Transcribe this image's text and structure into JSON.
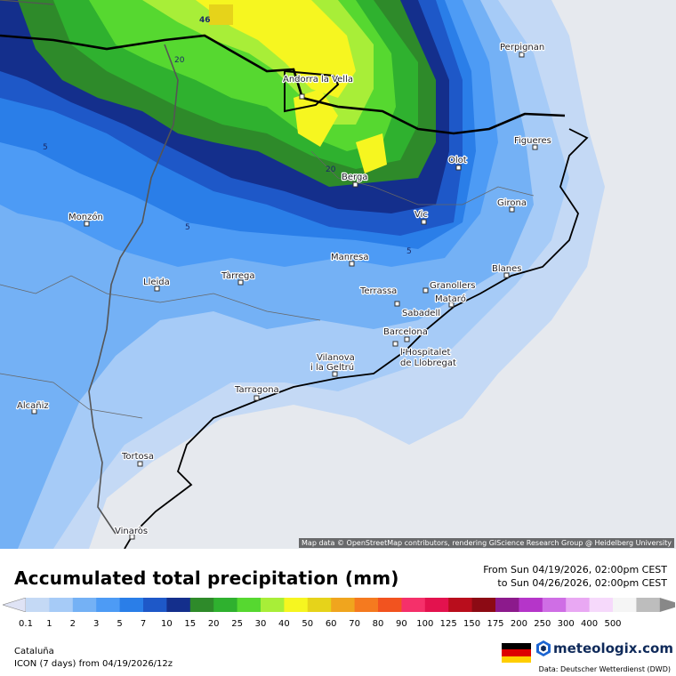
{
  "map": {
    "attribution": "Map data © OpenStreetMap contributors, rendering GIScience Research Group @ Heidelberg University",
    "cities": [
      {
        "name": "Perpignan"
      },
      {
        "name": "Andorra la Vella"
      },
      {
        "name": "Figueres"
      },
      {
        "name": "Olot"
      },
      {
        "name": "Berga"
      },
      {
        "name": "Girona"
      },
      {
        "name": "Vic"
      },
      {
        "name": "Monzón"
      },
      {
        "name": "Manresa"
      },
      {
        "name": "Blanes"
      },
      {
        "name": "Tàrrega"
      },
      {
        "name": "Lleida"
      },
      {
        "name": "Granollers"
      },
      {
        "name": "Terrassa"
      },
      {
        "name": "Mataró"
      },
      {
        "name": "Sabadell"
      },
      {
        "name": "Barcelona"
      },
      {
        "name": "l'Hospitalet de Llobregat"
      },
      {
        "name": "Vilanova i la Geltrú"
      },
      {
        "name": "Tarragona"
      },
      {
        "name": "Alcañiz"
      },
      {
        "name": "Tortosa"
      },
      {
        "name": "Vinaròs"
      }
    ],
    "contour_labels": [
      "46",
      "20",
      "20",
      "5",
      "5",
      "5"
    ]
  },
  "legend": {
    "title": "Accumulated total precipitation (mm)",
    "date_from": "From Sun 04/19/2026, 02:00pm CEST",
    "date_to": "to Sun 04/26/2026, 02:00pm CEST",
    "ticks": [
      "0.1",
      "1",
      "2",
      "3",
      "5",
      "7",
      "10",
      "15",
      "20",
      "25",
      "30",
      "40",
      "50",
      "60",
      "70",
      "80",
      "90",
      "100",
      "125",
      "150",
      "175",
      "200",
      "250",
      "300",
      "400",
      "500"
    ],
    "colors": [
      "#dfe3f5",
      "#c4d9f5",
      "#a6cbf7",
      "#74b1f5",
      "#4d9bf5",
      "#2a7ee8",
      "#1e58c8",
      "#142f8c",
      "#2e8a2a",
      "#2fb12f",
      "#56d830",
      "#a8ee38",
      "#f6f620",
      "#e6d31a",
      "#f0a51e",
      "#f57a1f",
      "#f2531f",
      "#f5306a",
      "#e3124e",
      "#b90d1c",
      "#8c0a14",
      "#8c1a8c",
      "#b535c9",
      "#cf6ee5",
      "#e9a8f3",
      "#f6d9fb",
      "#f5f5f5",
      "#bdbdbd",
      "#888888"
    ]
  },
  "footer": {
    "region": "Cataluña",
    "model": "ICON (7 days) from 04/19/2026/12z",
    "logo_text": "meteologix.com",
    "data_source": "Data: Deutscher Wetterdienst (DWD)"
  }
}
